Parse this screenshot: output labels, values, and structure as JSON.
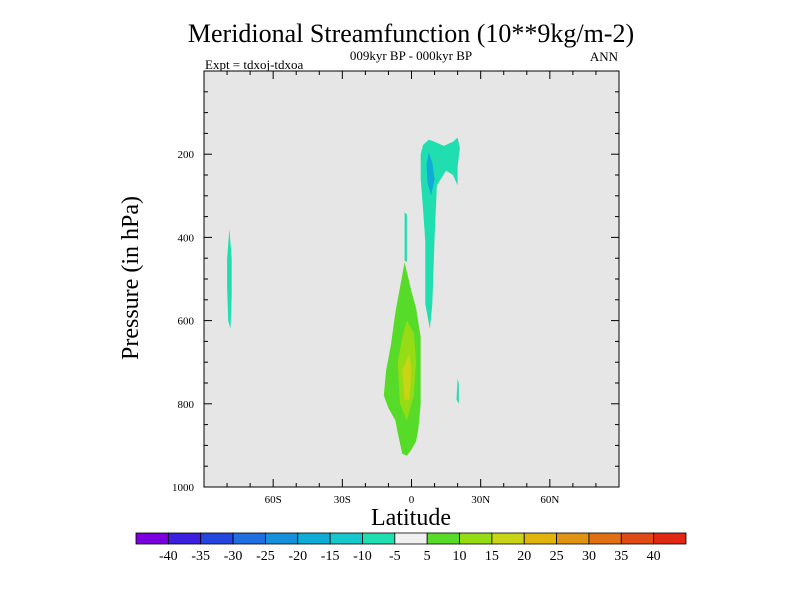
{
  "chart_data": {
    "type": "contour",
    "title": "Meridional Streamfunction (10**9kg/m-2)",
    "subtitle": "009kyr BP - 000kyr BP",
    "experiment": "Expt = tdxoj-tdxoa",
    "season": "ANN",
    "xlabel": "Latitude",
    "ylabel": "Pressure (in hPa)",
    "xlim": [
      -90,
      90
    ],
    "ylim": [
      1000,
      0
    ],
    "y_reversed": true,
    "background_color": "#e6e6e6",
    "x_ticks": [
      {
        "value": -60,
        "label": "60S"
      },
      {
        "value": -30,
        "label": "30S"
      },
      {
        "value": 0,
        "label": "0"
      },
      {
        "value": 30,
        "label": "30N"
      },
      {
        "value": 60,
        "label": "60N"
      }
    ],
    "y_ticks": [
      {
        "value": 200,
        "label": "200"
      },
      {
        "value": 400,
        "label": "400"
      },
      {
        "value": 600,
        "label": "600"
      },
      {
        "value": 800,
        "label": "800"
      },
      {
        "value": 1000,
        "label": "1000"
      }
    ],
    "colorbar": {
      "labels": [
        "-40",
        "-35",
        "-30",
        "-25",
        "-20",
        "-15",
        "-10",
        "-5",
        "5",
        "10",
        "15",
        "20",
        "25",
        "30",
        "35",
        "40"
      ],
      "colors": [
        "#7b00e0",
        "#3d1fe0",
        "#2646e0",
        "#1f6fe0",
        "#1690d8",
        "#10acd8",
        "#16c8cc",
        "#20deb0",
        "#f0f0f0",
        "#56dc28",
        "#96dc14",
        "#c8d414",
        "#e0b40a",
        "#e09414",
        "#e07014",
        "#e04a14",
        "#e02814"
      ]
    },
    "contours": [
      {
        "name": "upper-tropospheric-negative-cell",
        "level": "-10 to -5",
        "color": "#20deb0",
        "points": [
          [
            7.5,
            165
          ],
          [
            10,
            170
          ],
          [
            14,
            180
          ],
          [
            18,
            170
          ],
          [
            20,
            160
          ],
          [
            21,
            185
          ],
          [
            20,
            230
          ],
          [
            20,
            275
          ],
          [
            18,
            250
          ],
          [
            15,
            240
          ],
          [
            11,
            275
          ],
          [
            10,
            400
          ],
          [
            9,
            560
          ],
          [
            8,
            620
          ],
          [
            6,
            560
          ],
          [
            6,
            410
          ],
          [
            5,
            330
          ],
          [
            4,
            260
          ],
          [
            4,
            200
          ],
          [
            5,
            178
          ]
        ]
      },
      {
        "name": "upper-tropospheric-core",
        "level": "-15 to -10",
        "color": "#10acd8",
        "points": [
          [
            7.5,
            195
          ],
          [
            9,
            220
          ],
          [
            10,
            260
          ],
          [
            8.5,
            300
          ],
          [
            7,
            270
          ],
          [
            6.5,
            225
          ]
        ]
      },
      {
        "name": "southern-hemisphere-negative-cell",
        "level": "-10 to -5",
        "color": "#20deb0",
        "points": [
          [
            -79,
            380
          ],
          [
            -78,
            450
          ],
          [
            -78,
            540
          ],
          [
            -78.5,
            620
          ],
          [
            -79.5,
            600
          ],
          [
            -80,
            520
          ],
          [
            -80,
            450
          ]
        ]
      },
      {
        "name": "thin-negative-sliver",
        "level": "-10 to -5",
        "color": "#20deb0",
        "points": [
          [
            -3,
            340
          ],
          [
            -2,
            345
          ],
          [
            -2,
            460
          ],
          [
            -3,
            455
          ]
        ]
      },
      {
        "name": "small-negative-spot",
        "level": "-10 to -5",
        "color": "#20deb0",
        "points": [
          [
            20,
            740
          ],
          [
            20.5,
            750
          ],
          [
            20.5,
            800
          ],
          [
            19.5,
            790
          ]
        ]
      },
      {
        "name": "lower-tropospheric-positive-cell",
        "level": "5 to 10",
        "color": "#56dc28",
        "points": [
          [
            -3,
            460
          ],
          [
            0,
            530
          ],
          [
            2,
            570
          ],
          [
            4,
            640
          ],
          [
            4,
            800
          ],
          [
            3,
            860
          ],
          [
            2,
            890
          ],
          [
            0,
            910
          ],
          [
            -2,
            925
          ],
          [
            -4,
            920
          ],
          [
            -6,
            870
          ],
          [
            -7,
            840
          ],
          [
            -10,
            810
          ],
          [
            -12,
            780
          ],
          [
            -11,
            720
          ],
          [
            -9,
            660
          ],
          [
            -7,
            580
          ],
          [
            -5,
            520
          ]
        ]
      },
      {
        "name": "lower-tropospheric-core",
        "level": "10 to 15",
        "color": "#96dc14",
        "points": [
          [
            -2,
            600
          ],
          [
            1,
            630
          ],
          [
            2,
            700
          ],
          [
            1,
            780
          ],
          [
            -2,
            840
          ],
          [
            -5,
            800
          ],
          [
            -6,
            700
          ],
          [
            -4,
            640
          ]
        ]
      },
      {
        "name": "lower-tropospheric-inner-core",
        "level": "15 to 20",
        "color": "#c8d414",
        "points": [
          [
            -1,
            680
          ],
          [
            0,
            720
          ],
          [
            -1,
            790
          ],
          [
            -3,
            790
          ],
          [
            -4,
            720
          ]
        ]
      }
    ]
  }
}
